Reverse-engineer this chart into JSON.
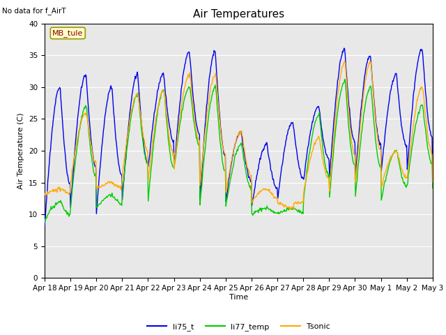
{
  "title": "Air Temperatures",
  "no_data_text": "No data for f_AirT",
  "mb_tule_label": "MB_tule",
  "ylabel": "Air Temperature (C)",
  "xlabel": "Time",
  "ylim": [
    0,
    40
  ],
  "yticks": [
    0,
    5,
    10,
    15,
    20,
    25,
    30,
    35,
    40
  ],
  "background_color": "#e8e8e8",
  "line_colors": {
    "li75_t": "#0000ee",
    "li77_temp": "#00cc00",
    "Tsonic": "#ffaa00"
  },
  "tick_labels": [
    "Apr 18",
    "Apr 19",
    "Apr 20",
    "Apr 21",
    "Apr 22",
    "Apr 23",
    "Apr 24",
    "Apr 25",
    "Apr 26",
    "Apr 27",
    "Apr 28",
    "Apr 29",
    "Apr 30",
    "May 1",
    "May 2",
    "May 3"
  ],
  "legend_labels": [
    "li75_t",
    "li77_temp",
    "Tsonic"
  ],
  "num_points": 720,
  "num_days": 15
}
